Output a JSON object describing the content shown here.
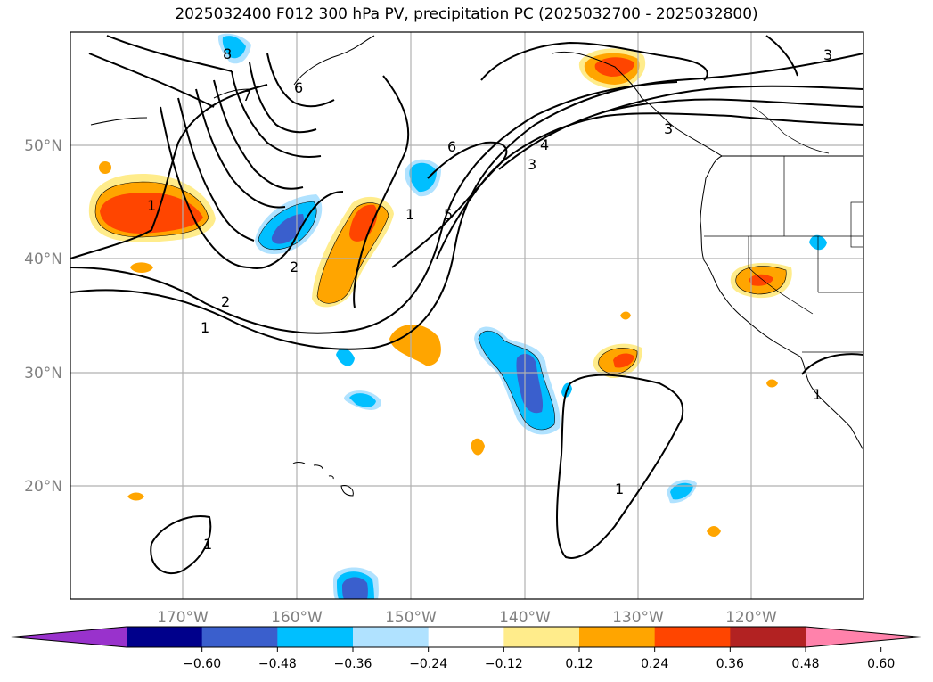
{
  "title": "2025032400 F012 300 hPa PV, precipitation PC (2025032700 - 2025032800)",
  "map": {
    "lon_labels": [
      "170°W",
      "160°W",
      "150°W",
      "140°W",
      "130°W",
      "120°W"
    ],
    "lat_labels": [
      "50°N",
      "40°N",
      "30°N",
      "20°N"
    ],
    "pv_contour_labels": [
      "8",
      "7",
      "6",
      "6",
      "5",
      "4",
      "3",
      "3",
      "2",
      "2",
      "1",
      "1",
      "1",
      "1",
      "1",
      "1",
      "3"
    ]
  },
  "colorbar": {
    "ticks": [
      "−0.60",
      "−0.48",
      "−0.36",
      "−0.24",
      "−0.12",
      "0.12",
      "0.24",
      "0.36",
      "0.48",
      "0.60"
    ],
    "colors": [
      "#9932cc",
      "#00008b",
      "#3a5fcd",
      "#00bfff",
      "#b0e2ff",
      "#ffffff",
      "#ffec8b",
      "#ffa500",
      "#ff4500",
      "#b22222",
      "#ff82ab"
    ]
  }
}
